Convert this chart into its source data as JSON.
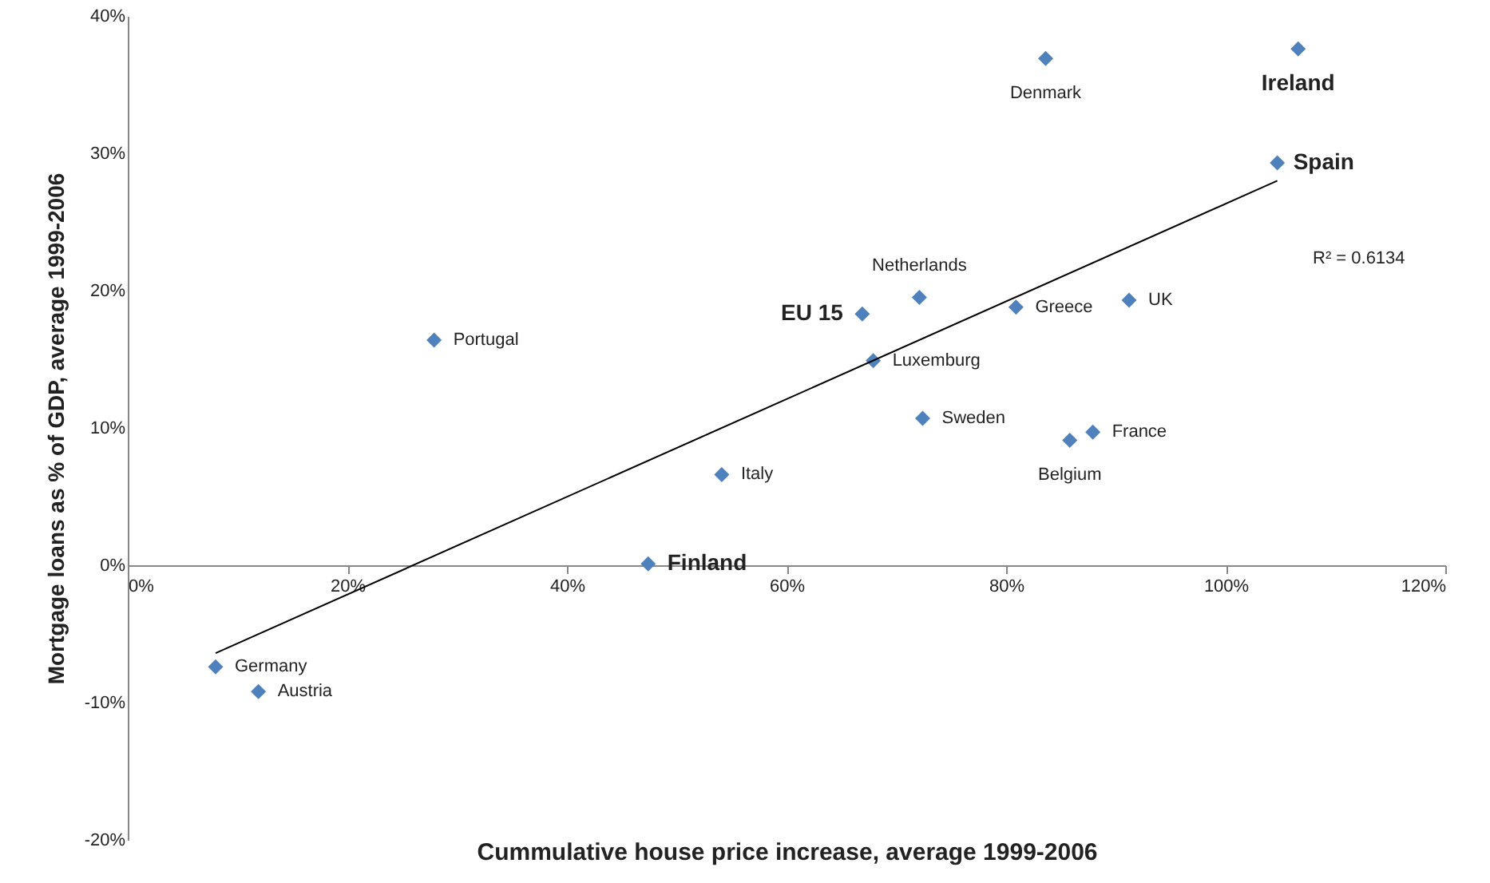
{
  "chart_data": {
    "type": "scatter",
    "xlabel": "Cummulative house price increase, average 1999-2006",
    "ylabel": "Mortgage loans as % of GDP, average 1999-2006",
    "xlim": [
      0,
      120
    ],
    "ylim": [
      -20,
      40
    ],
    "xticks": [
      {
        "value": 0,
        "label": "0%"
      },
      {
        "value": 20,
        "label": "20%"
      },
      {
        "value": 40,
        "label": "40%"
      },
      {
        "value": 60,
        "label": "60%"
      },
      {
        "value": 80,
        "label": "80%"
      },
      {
        "value": 100,
        "label": "100%"
      },
      {
        "value": 120,
        "label": "120%"
      }
    ],
    "yticks": [
      {
        "value": -20,
        "label": "-20%"
      },
      {
        "value": -10,
        "label": "-10%"
      },
      {
        "value": 0,
        "label": "0%"
      },
      {
        "value": 10,
        "label": "10%"
      },
      {
        "value": 20,
        "label": "20%"
      },
      {
        "value": 30,
        "label": "30%"
      },
      {
        "value": 40,
        "label": "40%"
      }
    ],
    "series": [
      {
        "color": "#4f81bd",
        "marker": "diamond",
        "x": [
          8.0,
          11.9,
          27.9,
          47.4,
          54.1,
          66.9,
          67.9,
          72.1,
          72.4,
          80.9,
          83.6,
          85.8,
          87.9,
          91.2,
          104.7,
          106.6
        ],
        "values": [
          -7.4,
          -9.2,
          16.4,
          0.1,
          6.6,
          18.3,
          14.9,
          19.5,
          10.7,
          18.8,
          36.9,
          9.1,
          9.7,
          19.3,
          29.3,
          37.6
        ]
      },
      {
        "type": "line",
        "marker": "none",
        "color": "#000000",
        "x": [
          8.0,
          104.7
        ],
        "values": [
          -6.4,
          28.0
        ]
      }
    ],
    "annotations": [
      {
        "text": "Germany",
        "x": 8.0,
        "y": -7.4
      },
      {
        "text": "Austria",
        "x": 11.9,
        "y": -9.2
      },
      {
        "text": "Portugal",
        "x": 27.9,
        "y": 16.4
      },
      {
        "text": "Finland",
        "x": 47.4,
        "y": 0.1
      },
      {
        "text": "Italy",
        "x": 54.1,
        "y": 6.6
      },
      {
        "text": "EU 15",
        "x": 66.9,
        "y": 18.3
      },
      {
        "text": "Luxemburg",
        "x": 67.9,
        "y": 14.9
      },
      {
        "text": "Netherlands",
        "x": 72.1,
        "y": 19.5
      },
      {
        "text": "Sweden",
        "x": 72.4,
        "y": 10.7
      },
      {
        "text": "Greece",
        "x": 80.9,
        "y": 18.8
      },
      {
        "text": "Denmark",
        "x": 83.6,
        "y": 36.9
      },
      {
        "text": "Belgium",
        "x": 85.8,
        "y": 9.1
      },
      {
        "text": "France",
        "x": 87.9,
        "y": 9.7
      },
      {
        "text": "UK",
        "x": 91.2,
        "y": 19.3
      },
      {
        "text": "Spain",
        "x": 104.7,
        "y": 29.3
      },
      {
        "text": "Ireland",
        "x": 106.6,
        "y": 37.6
      },
      "R² = 0.6134"
    ]
  }
}
